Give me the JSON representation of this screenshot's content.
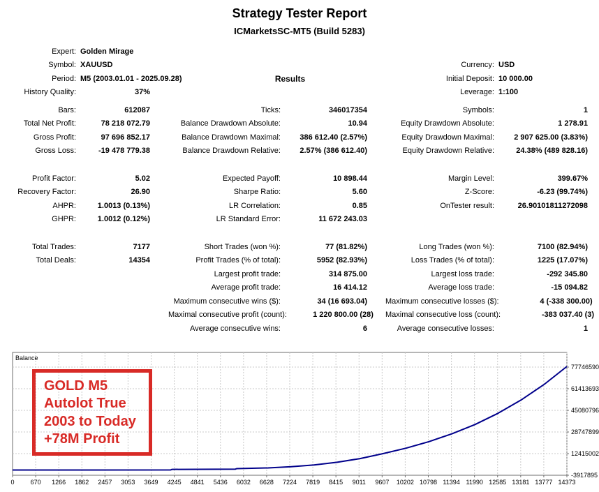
{
  "header": {
    "title": "Strategy Tester Report",
    "subtitle": "ICMarketsSC-MT5 (Build 5283)"
  },
  "report": {
    "results_header": "Results",
    "rows": [
      {
        "pairs": [
          {
            "l": "Expert:",
            "v": "Golden Mirage",
            "a": "l"
          },
          null,
          null
        ]
      },
      {
        "pairs": [
          {
            "l": "Symbol:",
            "v": "XAUUSD",
            "a": "l"
          },
          null,
          {
            "l": "Currency:",
            "v": "USD",
            "a": "l"
          }
        ]
      },
      {
        "pairs": [
          {
            "l": "Period:",
            "v": "M5 (2003.01.01 - 2025.09.28)",
            "a": "l"
          },
          {
            "h": "Results"
          },
          {
            "l": "Initial Deposit:",
            "v": "10 000.00",
            "a": "l"
          }
        ]
      },
      {
        "pairs": [
          {
            "l": "History Quality:",
            "v": "37%",
            "a": "r"
          },
          null,
          {
            "l": "Leverage:",
            "v": "1:100",
            "a": "l"
          }
        ]
      },
      {
        "gap": "sm"
      },
      {
        "pairs": [
          {
            "l": "Bars:",
            "v": "612087",
            "a": "r"
          },
          {
            "l": "Ticks:",
            "v": "346017354",
            "a": "r"
          },
          {
            "l": "Symbols:",
            "v": "1",
            "a": "r"
          }
        ]
      },
      {
        "pairs": [
          {
            "l": "Total Net Profit:",
            "v": "78 218 072.79",
            "a": "r"
          },
          {
            "l": "Balance Drawdown Absolute:",
            "v": "10.94",
            "a": "r"
          },
          {
            "l": "Equity Drawdown Absolute:",
            "v": "1 278.91",
            "a": "r"
          }
        ]
      },
      {
        "pairs": [
          {
            "l": "Gross Profit:",
            "v": "97 696 852.17",
            "a": "r"
          },
          {
            "l": "Balance Drawdown Maximal:",
            "v": "386 612.40 (2.57%)",
            "a": "r"
          },
          {
            "l": "Equity Drawdown Maximal:",
            "v": "2 907 625.00 (3.83%)",
            "a": "r"
          }
        ]
      },
      {
        "pairs": [
          {
            "l": "Gross Loss:",
            "v": "-19 478 779.38",
            "a": "r"
          },
          {
            "l": "Balance Drawdown Relative:",
            "v": "2.57% (386 612.40)",
            "a": "r"
          },
          {
            "l": "Equity Drawdown Relative:",
            "v": "24.38% (489 828.16)",
            "a": "r"
          }
        ]
      },
      {
        "gap": "lg"
      },
      {
        "pairs": [
          {
            "l": "Profit Factor:",
            "v": "5.02",
            "a": "r"
          },
          {
            "l": "Expected Payoff:",
            "v": "10 898.44",
            "a": "r"
          },
          {
            "l": "Margin Level:",
            "v": "399.67%",
            "a": "r"
          }
        ]
      },
      {
        "pairs": [
          {
            "l": "Recovery Factor:",
            "v": "26.90",
            "a": "r"
          },
          {
            "l": "Sharpe Ratio:",
            "v": "5.60",
            "a": "r"
          },
          {
            "l": "Z-Score:",
            "v": "-6.23 (99.74%)",
            "a": "r"
          }
        ]
      },
      {
        "pairs": [
          {
            "l": "AHPR:",
            "v": "1.0013 (0.13%)",
            "a": "r"
          },
          {
            "l": "LR Correlation:",
            "v": "0.85",
            "a": "r"
          },
          {
            "l": "OnTester result:",
            "v": "26.90101811272098",
            "a": "r"
          }
        ]
      },
      {
        "pairs": [
          {
            "l": "GHPR:",
            "v": "1.0012 (0.12%)",
            "a": "r"
          },
          {
            "l": "LR Standard Error:",
            "v": "11 672 243.03",
            "a": "r"
          },
          null
        ]
      },
      {
        "gap": "lg"
      },
      {
        "pairs": [
          {
            "l": "Total Trades:",
            "v": "7177",
            "a": "r"
          },
          {
            "l": "Short Trades (won %):",
            "v": "77 (81.82%)",
            "a": "r"
          },
          {
            "l": "Long Trades (won %):",
            "v": "7100 (82.94%)",
            "a": "r"
          }
        ]
      },
      {
        "pairs": [
          {
            "l": "Total Deals:",
            "v": "14354",
            "a": "r"
          },
          {
            "l": "Profit Trades (% of total):",
            "v": "5952 (82.93%)",
            "a": "r"
          },
          {
            "l": "Loss Trades (% of total):",
            "v": "1225 (17.07%)",
            "a": "r"
          }
        ]
      },
      {
        "pairs": [
          null,
          {
            "l": "Largest profit trade:",
            "v": "314 875.00",
            "a": "r"
          },
          {
            "l": "Largest loss trade:",
            "v": "-292 345.80",
            "a": "r"
          }
        ]
      },
      {
        "pairs": [
          null,
          {
            "l": "Average profit trade:",
            "v": "16 414.12",
            "a": "r"
          },
          {
            "l": "Average loss trade:",
            "v": "-15 094.82",
            "a": "r"
          }
        ]
      },
      {
        "pairs": [
          null,
          {
            "l": "Maximum consecutive wins ($):",
            "v": "34 (16 693.04)",
            "a": "r"
          },
          {
            "l": "Maximum consecutive losses ($):",
            "v": "4 (-338 300.00)",
            "a": "r"
          }
        ]
      },
      {
        "pairs": [
          null,
          {
            "l": "Maximal consecutive profit (count):",
            "v": "1 220 800.00 (28)",
            "a": "r"
          },
          {
            "l": "Maximal consecutive loss (count):",
            "v": "-383 037.40 (3)",
            "a": "r"
          }
        ]
      },
      {
        "pairs": [
          null,
          {
            "l": "Average consecutive wins:",
            "v": "6",
            "a": "r"
          },
          {
            "l": "Average consecutive losses:",
            "v": "1",
            "a": "r"
          }
        ]
      }
    ]
  },
  "chart_data": {
    "type": "line",
    "title": "Balance",
    "xlabel": "",
    "ylabel": "",
    "legend_position": "top-left-inside",
    "grid": true,
    "x_max": 14373,
    "x_ticks": [
      0,
      670,
      1266,
      1862,
      2457,
      3053,
      3649,
      4245,
      4841,
      5436,
      6032,
      6628,
      7224,
      7819,
      8415,
      9011,
      9607,
      10202,
      10798,
      11394,
      11990,
      12585,
      13181,
      13777,
      14373
    ],
    "y_ticks": [
      77746590,
      61413693,
      45080796,
      28747899,
      12415002,
      -3917895
    ],
    "colors": {
      "line": "#00008B",
      "grid": "#c9c9c9",
      "border": "#6e6e6e",
      "annotation": "#d82a26"
    },
    "series": [
      {
        "name": "Balance",
        "color": "#00008B",
        "points": [
          [
            0,
            10000
          ],
          [
            2000,
            40000
          ],
          [
            4100,
            80000
          ],
          [
            4130,
            500000
          ],
          [
            5780,
            700000
          ],
          [
            5810,
            1100000
          ],
          [
            6628,
            1600000
          ],
          [
            7224,
            2500000
          ],
          [
            7819,
            3900000
          ],
          [
            8415,
            5900000
          ],
          [
            9011,
            8700000
          ],
          [
            9607,
            12400000
          ],
          [
            10202,
            16500000
          ],
          [
            10798,
            21500000
          ],
          [
            11394,
            27400000
          ],
          [
            11990,
            34400000
          ],
          [
            12585,
            42800000
          ],
          [
            13181,
            52800000
          ],
          [
            13777,
            64500000
          ],
          [
            14373,
            78228073
          ]
        ]
      }
    ],
    "annotation": {
      "lines": [
        "GOLD M5",
        "Autolot True",
        "2003 to Today",
        "+78M Profit"
      ],
      "color": "#d82a26"
    }
  }
}
